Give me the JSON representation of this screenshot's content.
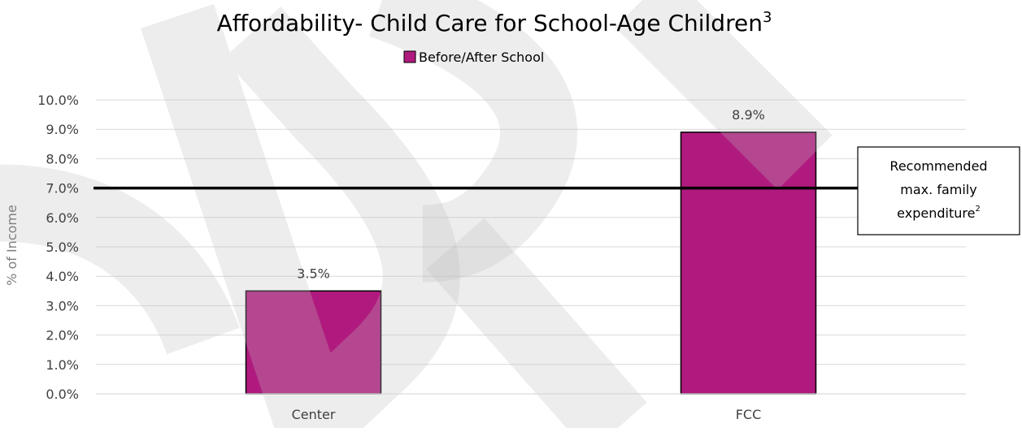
{
  "chart_data": {
    "type": "bar",
    "title": "Affordability- Child Care for School-Age Children",
    "title_superscript": "3",
    "categories": [
      "Center",
      "FCC"
    ],
    "series": [
      {
        "name": "Before/After School",
        "color": "#b01a7e",
        "values": [
          3.5,
          8.9
        ]
      }
    ],
    "data_labels": [
      "3.5%",
      "8.9%"
    ],
    "ylabel": "% of Income",
    "xlabel": "",
    "ylim": [
      0,
      10
    ],
    "y_ticks": [
      0,
      1,
      2,
      3,
      4,
      5,
      6,
      7,
      8,
      9,
      10
    ],
    "y_tick_labels": [
      "0.0%",
      "1.0%",
      "2.0%",
      "3.0%",
      "4.0%",
      "5.0%",
      "6.0%",
      "7.0%",
      "8.0%",
      "9.0%",
      "10.0%"
    ],
    "grid": true,
    "legend_position": "top-center",
    "reference_line": {
      "value": 7.0,
      "color": "#000000",
      "label_lines": [
        "Recommended",
        "max. family",
        "expenditure"
      ],
      "label_superscript": "2"
    },
    "watermark": "DRAFT"
  }
}
